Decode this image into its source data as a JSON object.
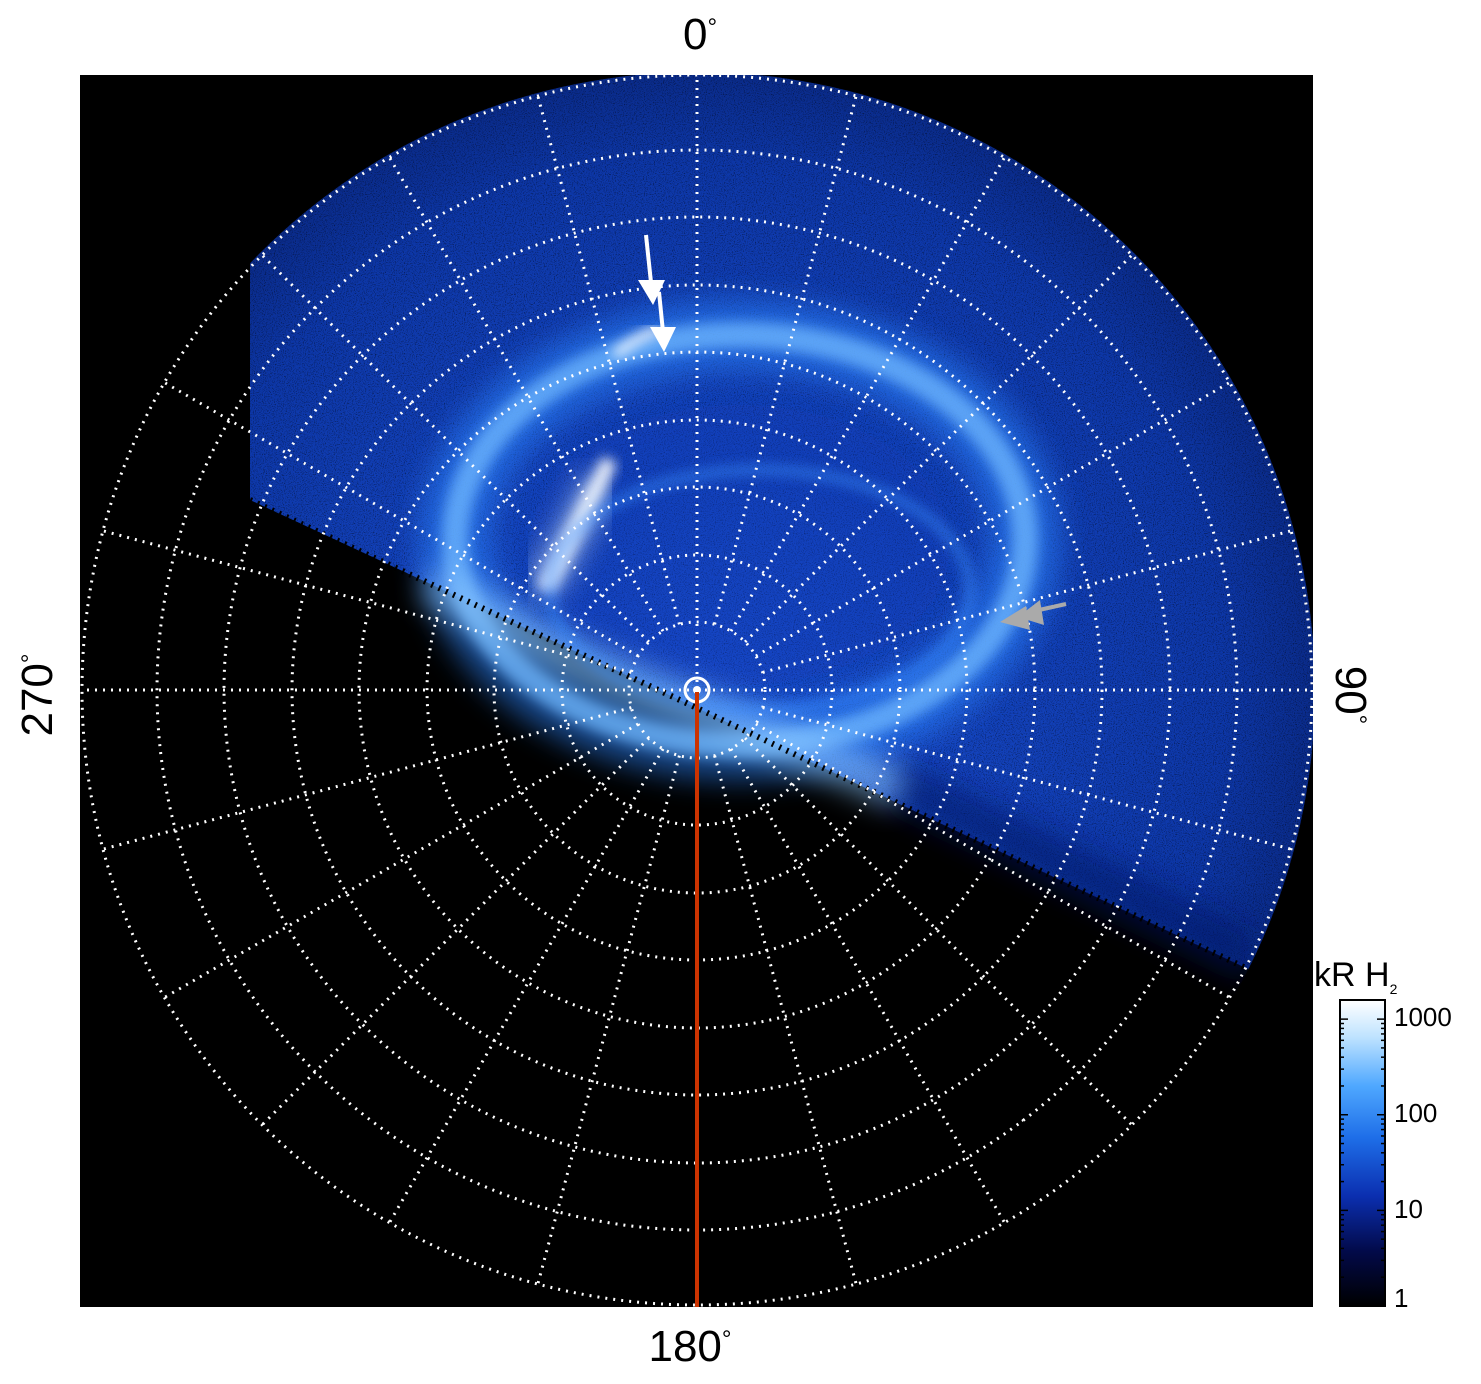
{
  "figure": {
    "azimuth_labels": {
      "top": "0",
      "right": "90",
      "bottom": "180",
      "left": "270",
      "unit": "°"
    },
    "colorbar": {
      "title_main": "kR H",
      "title_sub": "2",
      "scale": "log",
      "ticks": [
        "1000",
        "100",
        "10",
        "1"
      ],
      "colors": [
        "#000000",
        "#020a4a",
        "#0b2fb0",
        "#1e6ee8",
        "#4fa8ff",
        "#bfe3ff",
        "#ffffff"
      ]
    },
    "colors": {
      "background": "#000000",
      "grid": "#ffffff",
      "meridian_line": "#cc3300",
      "arrow_white": "#ffffff",
      "arrow_gray": "#aaaaaa"
    },
    "grid": {
      "style": "dotted",
      "latitude_circles": 9,
      "meridian_spacing_deg": 15
    }
  }
}
